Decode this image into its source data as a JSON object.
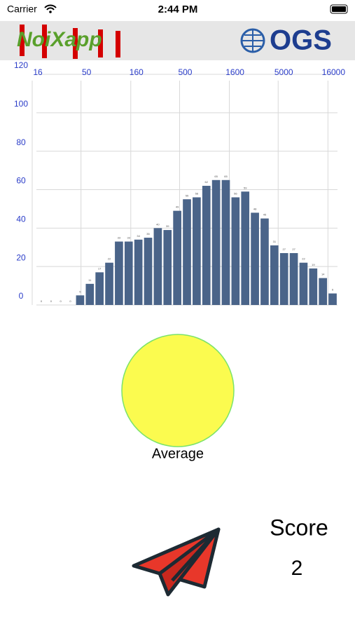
{
  "status_bar": {
    "carrier": "Carrier",
    "time": "2:44 PM"
  },
  "header": {
    "left_logo": "NoiXapp",
    "right_logo": "OGS"
  },
  "chart_data": {
    "type": "bar",
    "categories": [
      null,
      null,
      null,
      null,
      null,
      null,
      null,
      null,
      null,
      null,
      null,
      null,
      null,
      null,
      null,
      null,
      null,
      null,
      null,
      null,
      null,
      null,
      null,
      null,
      null,
      null,
      null,
      null,
      null,
      null,
      null
    ],
    "values": [
      0,
      0,
      0,
      0,
      5,
      11,
      17,
      22,
      33,
      33,
      34,
      35,
      40,
      39,
      49,
      55,
      56,
      62,
      65,
      65,
      56,
      59,
      48,
      45,
      31,
      27,
      27,
      22,
      19,
      14,
      6
    ],
    "color": "#4a6489",
    "xlim": [
      16,
      20000
    ],
    "log_x": true,
    "xticks": [
      16,
      50,
      160,
      500,
      1600,
      5000,
      16000
    ],
    "ylim": [
      0,
      120
    ],
    "yticks": [
      0,
      20,
      40,
      60,
      80,
      100,
      120
    ],
    "grid": true
  },
  "indicator": {
    "label": "Average",
    "color": "#fbfb4f"
  },
  "score": {
    "label": "Score",
    "value": 2
  }
}
